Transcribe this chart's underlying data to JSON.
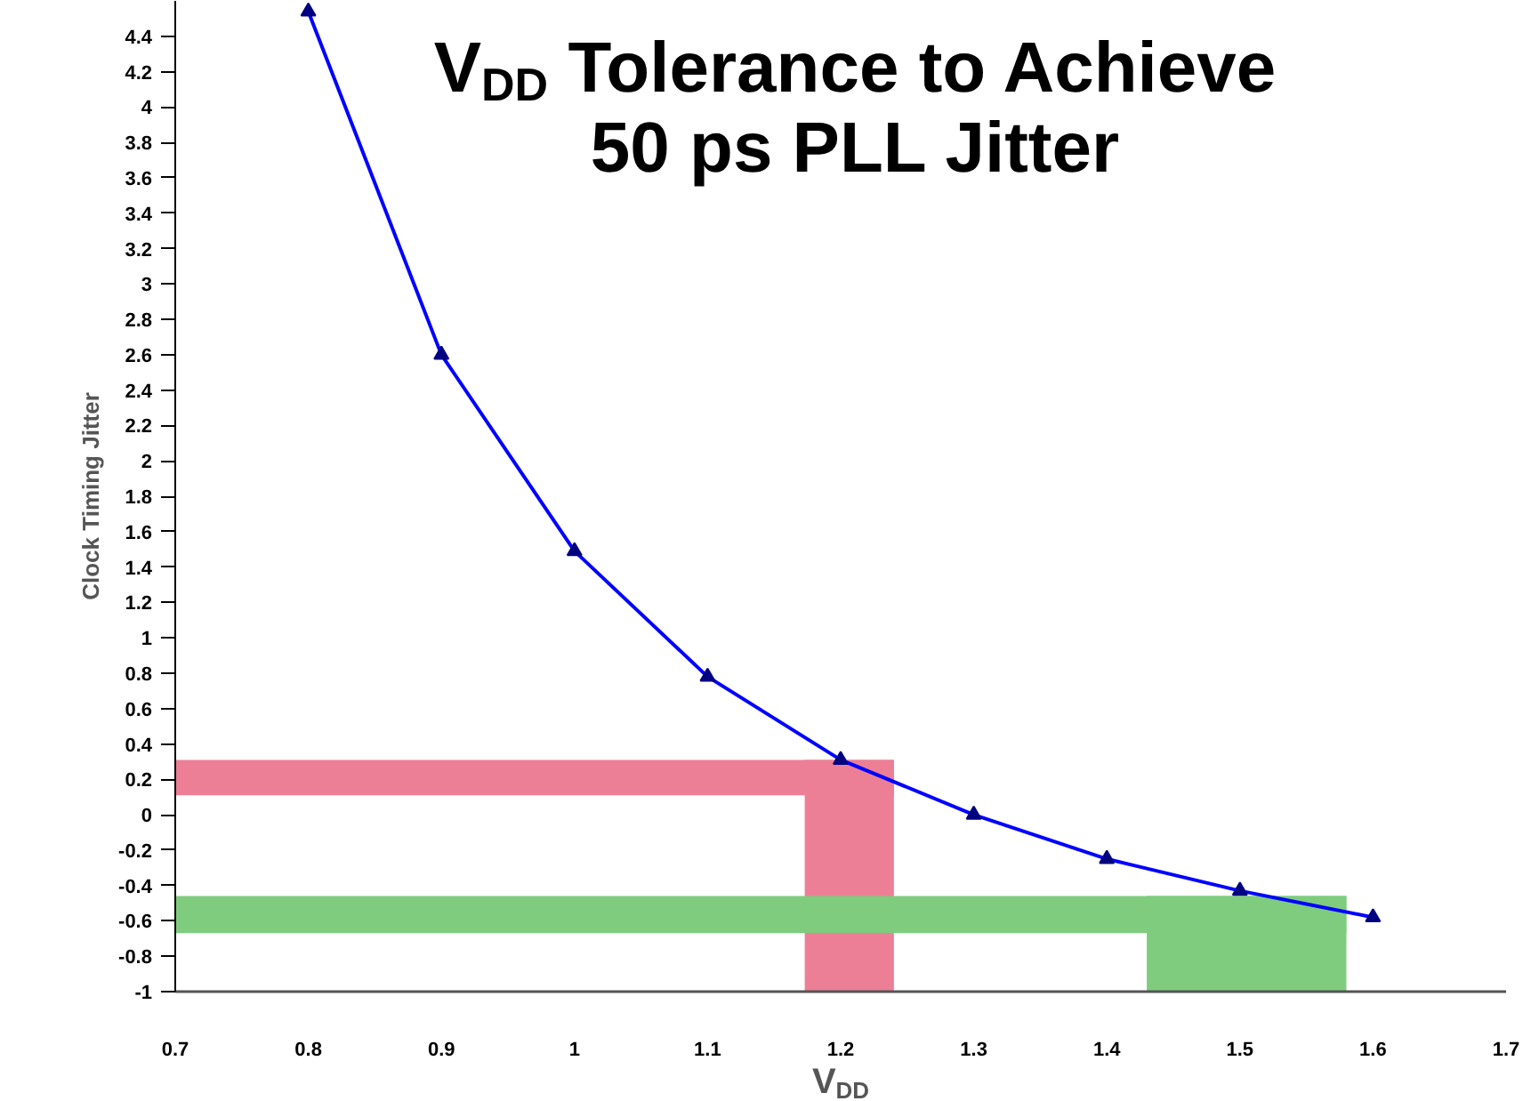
{
  "chart_data": {
    "type": "line",
    "title": "V$_{DD}$ Tolerance to Achieve 50 ps PLL Jitter",
    "xlabel": "V$_{DD}$",
    "ylabel": "Clock Timing Jitter",
    "x": [
      0.8,
      0.9,
      1.0,
      1.1,
      1.2,
      1.3,
      1.4,
      1.5,
      1.6
    ],
    "series": [
      {
        "color": "#0000ff",
        "values": [
          4.54,
          2.6,
          1.49,
          0.78,
          0.31,
          0.0,
          -0.25,
          -0.43,
          -0.58
        ]
      }
    ],
    "marker": "triangle",
    "xlim": [
      0.7,
      1.7
    ],
    "ylim": [
      -1,
      4.6
    ],
    "xticks": [
      0.7,
      0.8,
      0.9,
      1,
      1.1,
      1.2,
      1.3,
      1.4,
      1.5,
      1.6,
      1.7
    ],
    "yticks": [
      -1,
      -0.8,
      -0.6,
      -0.4,
      -0.2,
      0,
      0.2,
      0.4,
      0.6,
      0.8,
      1,
      1.2,
      1.4,
      1.6,
      1.8,
      2,
      2.2,
      2.4,
      2.6,
      2.8,
      3,
      3.2,
      3.4,
      3.6,
      3.8,
      4,
      4.2,
      4.4
    ],
    "bands": [
      {
        "axis": "y",
        "from": 0.11,
        "to": 0.31,
        "color": "#ec7f95"
      },
      {
        "axis": "x",
        "from": 1.173,
        "to": 1.24,
        "color": "#ec7f95"
      },
      {
        "axis": "y",
        "from": -0.67,
        "to": -0.46,
        "color": "#7fcc7f"
      },
      {
        "axis": "x",
        "from": 1.43,
        "to": 1.58,
        "color": "#7fcc7f"
      }
    ],
    "grid": false
  }
}
